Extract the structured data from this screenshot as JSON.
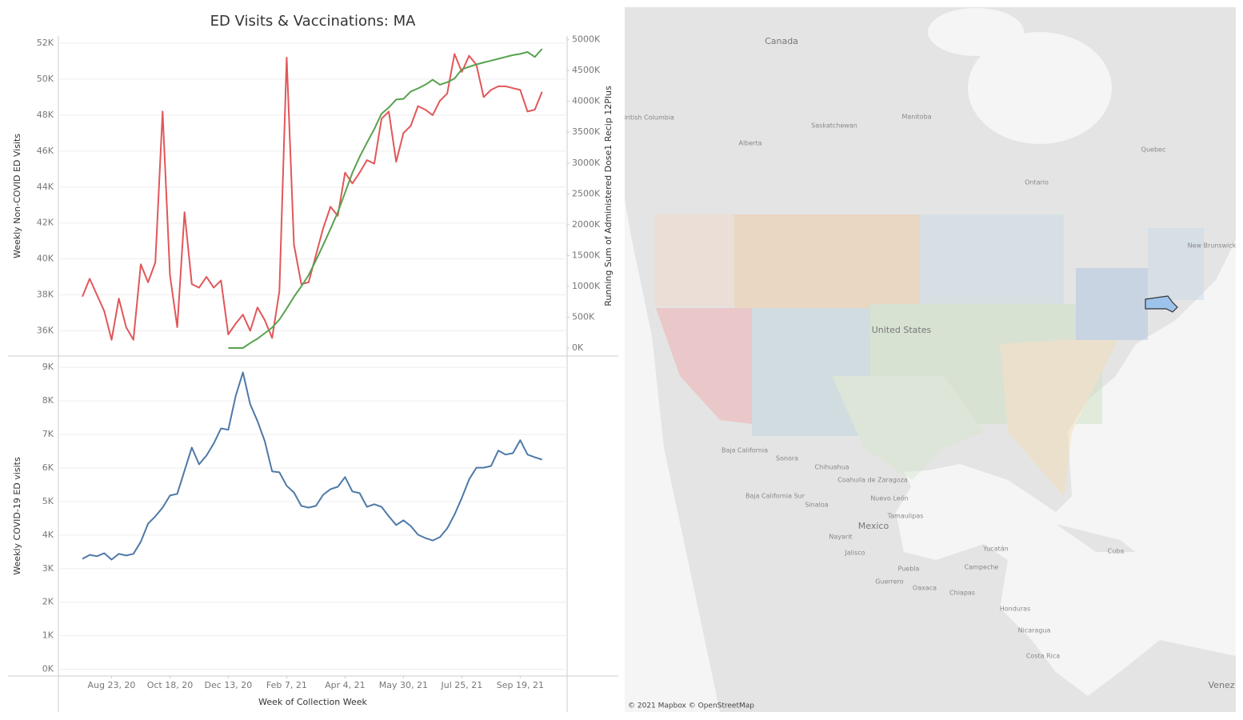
{
  "chart_data": [
    {
      "type": "line",
      "title": "ED Visits & Vaccinations: MA",
      "ylabel": "Weekly Non-COVID ED Visits",
      "y2label": "Running Sum of Administered Dose1 Recip 12Plus",
      "x": [
        "2020-07-26",
        "2020-08-02",
        "2020-08-09",
        "2020-08-16",
        "2020-08-23",
        "2020-08-30",
        "2020-09-06",
        "2020-09-13",
        "2020-09-20",
        "2020-09-27",
        "2020-10-04",
        "2020-10-11",
        "2020-10-18",
        "2020-10-25",
        "2020-11-01",
        "2020-11-08",
        "2020-11-15",
        "2020-11-22",
        "2020-11-29",
        "2020-12-06",
        "2020-12-13",
        "2020-12-20",
        "2020-12-27",
        "2021-01-03",
        "2021-01-10",
        "2021-01-17",
        "2021-01-24",
        "2021-01-31",
        "2021-02-07",
        "2021-02-14",
        "2021-02-21",
        "2021-02-28",
        "2021-03-07",
        "2021-03-14",
        "2021-03-21",
        "2021-03-28",
        "2021-04-04",
        "2021-04-11",
        "2021-04-18",
        "2021-04-25",
        "2021-05-02",
        "2021-05-09",
        "2021-05-16",
        "2021-05-23",
        "2021-05-30",
        "2021-06-06",
        "2021-06-13",
        "2021-06-20",
        "2021-06-27",
        "2021-07-04",
        "2021-07-11",
        "2021-07-18",
        "2021-07-25",
        "2021-08-01",
        "2021-08-08",
        "2021-08-15",
        "2021-08-22",
        "2021-08-29",
        "2021-09-05",
        "2021-09-12",
        "2021-09-19",
        "2021-09-26",
        "2021-10-03",
        "2021-10-10"
      ],
      "xlim": [
        "2020-07-03",
        "2021-11-03"
      ],
      "series": [
        {
          "color": "#e15759",
          "axis": "y",
          "values": [
            37900,
            38900,
            38000,
            37100,
            35500,
            37800,
            36200,
            35500,
            39700,
            38700,
            39800,
            48200,
            39100,
            36200,
            42600,
            38600,
            38400,
            39000,
            38400,
            38800,
            35800,
            36400,
            36900,
            36000,
            37300,
            36600,
            35600,
            38200,
            51200,
            40800,
            38600,
            38700,
            40200,
            41700,
            42900,
            42400,
            44800,
            44200,
            44800,
            45500,
            45300,
            47800,
            48200,
            45400,
            47000,
            47400,
            48500,
            48300,
            48000,
            48800,
            49200,
            51400,
            50400,
            51300,
            50800,
            49000,
            49400,
            49600,
            49600,
            49500,
            49400,
            48200,
            48300,
            49300
          ]
        },
        {
          "color": "#59a14f",
          "axis": "y2",
          "values": [
            null,
            null,
            null,
            null,
            null,
            null,
            null,
            null,
            null,
            null,
            null,
            null,
            null,
            null,
            null,
            null,
            null,
            null,
            null,
            null,
            0,
            0,
            0,
            80000,
            150000,
            240000,
            330000,
            460000,
            640000,
            830000,
            1000000,
            1180000,
            1420000,
            1670000,
            1930000,
            2200000,
            2520000,
            2840000,
            3100000,
            3330000,
            3550000,
            3800000,
            3900000,
            4030000,
            4040000,
            4160000,
            4210000,
            4270000,
            4350000,
            4270000,
            4310000,
            4370000,
            4520000,
            4560000,
            4600000,
            4630000,
            4660000,
            4690000,
            4720000,
            4750000,
            4770000,
            4800000,
            4720000,
            4850000
          ]
        }
      ],
      "ylim": [
        34600,
        52400
      ],
      "yticks": [
        {
          "value": 36000,
          "label": "36K"
        },
        {
          "value": 38000,
          "label": "38K"
        },
        {
          "value": 40000,
          "label": "40K"
        },
        {
          "value": 42000,
          "label": "42K"
        },
        {
          "value": 44000,
          "label": "44K"
        },
        {
          "value": 46000,
          "label": "46K"
        },
        {
          "value": 48000,
          "label": "48K"
        },
        {
          "value": 50000,
          "label": "50K"
        },
        {
          "value": 52000,
          "label": "52K"
        }
      ],
      "y2lim": [
        -130000,
        5060000
      ],
      "y2ticks": [
        {
          "value": 0,
          "label": "0K"
        },
        {
          "value": 500000,
          "label": "500K"
        },
        {
          "value": 1000000,
          "label": "1000K"
        },
        {
          "value": 1500000,
          "label": "1500K"
        },
        {
          "value": 2000000,
          "label": "2000K"
        },
        {
          "value": 2500000,
          "label": "2500K"
        },
        {
          "value": 3000000,
          "label": "3000K"
        },
        {
          "value": 3500000,
          "label": "3500K"
        },
        {
          "value": 4000000,
          "label": "4000K"
        },
        {
          "value": 4500000,
          "label": "4500K"
        },
        {
          "value": 5000000,
          "label": "5000K"
        }
      ],
      "grid": true
    },
    {
      "type": "line",
      "ylabel": "Weekly COVID-19 ED visits",
      "xlabel": "Week of Collection Week",
      "x": [
        "2020-07-26",
        "2020-08-02",
        "2020-08-09",
        "2020-08-16",
        "2020-08-23",
        "2020-08-30",
        "2020-09-06",
        "2020-09-13",
        "2020-09-20",
        "2020-09-27",
        "2020-10-04",
        "2020-10-11",
        "2020-10-18",
        "2020-10-25",
        "2020-11-01",
        "2020-11-08",
        "2020-11-15",
        "2020-11-22",
        "2020-11-29",
        "2020-12-06",
        "2020-12-13",
        "2020-12-20",
        "2020-12-27",
        "2021-01-03",
        "2021-01-10",
        "2021-01-17",
        "2021-01-24",
        "2021-01-31",
        "2021-02-07",
        "2021-02-14",
        "2021-02-21",
        "2021-02-28",
        "2021-03-07",
        "2021-03-14",
        "2021-03-21",
        "2021-03-28",
        "2021-04-04",
        "2021-04-11",
        "2021-04-18",
        "2021-04-25",
        "2021-05-02",
        "2021-05-09",
        "2021-05-16",
        "2021-05-23",
        "2021-05-30",
        "2021-06-06",
        "2021-06-13",
        "2021-06-20",
        "2021-06-27",
        "2021-07-04",
        "2021-07-11",
        "2021-07-18",
        "2021-07-25",
        "2021-08-01",
        "2021-08-08",
        "2021-08-15",
        "2021-08-22",
        "2021-08-29",
        "2021-09-05",
        "2021-09-12",
        "2021-09-19",
        "2021-09-26",
        "2021-10-03",
        "2021-10-10"
      ],
      "xlim": [
        "2020-07-03",
        "2021-11-03"
      ],
      "xticks": [
        {
          "value": "2020-08-23",
          "label": "Aug 23, 20"
        },
        {
          "value": "2020-10-18",
          "label": "Oct 18, 20"
        },
        {
          "value": "2020-12-13",
          "label": "Dec 13, 20"
        },
        {
          "value": "2021-02-07",
          "label": "Feb 7, 21"
        },
        {
          "value": "2021-04-04",
          "label": "Apr 4, 21"
        },
        {
          "value": "2021-05-30",
          "label": "May 30, 21"
        },
        {
          "value": "2021-07-25",
          "label": "Jul 25, 21"
        },
        {
          "value": "2021-09-19",
          "label": "Sep 19, 21"
        }
      ],
      "series": [
        {
          "color": "#4e79a7",
          "axis": "y",
          "values": [
            3290,
            3410,
            3370,
            3460,
            3270,
            3440,
            3390,
            3440,
            3800,
            4340,
            4560,
            4820,
            5180,
            5230,
            5920,
            6610,
            6110,
            6370,
            6730,
            7180,
            7140,
            8140,
            8850,
            7900,
            7400,
            6800,
            5900,
            5870,
            5470,
            5270,
            4870,
            4820,
            4870,
            5200,
            5370,
            5440,
            5730,
            5300,
            5250,
            4840,
            4920,
            4840,
            4560,
            4300,
            4440,
            4270,
            4010,
            3910,
            3840,
            3940,
            4200,
            4610,
            5110,
            5660,
            6010,
            6010,
            6060,
            6520,
            6400,
            6440,
            6830,
            6400,
            6320,
            6250
          ]
        }
      ],
      "ylim": [
        -200,
        9290
      ],
      "yticks": [
        {
          "value": 0,
          "label": "0K"
        },
        {
          "value": 1000,
          "label": "1K"
        },
        {
          "value": 2000,
          "label": "2K"
        },
        {
          "value": 3000,
          "label": "3K"
        },
        {
          "value": 4000,
          "label": "4K"
        },
        {
          "value": 5000,
          "label": "5K"
        },
        {
          "value": 6000,
          "label": "6K"
        },
        {
          "value": 7000,
          "label": "7K"
        },
        {
          "value": 8000,
          "label": "8K"
        },
        {
          "value": 9000,
          "label": "9K"
        }
      ],
      "grid": true
    }
  ],
  "map": {
    "labels": [
      "Canada",
      "British Columbia",
      "Alberta",
      "Saskatchewan",
      "Manitoba",
      "Ontario",
      "Quebec",
      "New Brunswick",
      "United States",
      "Baja California",
      "Sonora",
      "Chihuahua",
      "Coahuila de Zaragoza",
      "Baja California Sur",
      "Sinaloa",
      "Nuevo León",
      "Tamaulipas",
      "Mexico",
      "Nayarit",
      "Jalisco",
      "Yucatán",
      "Cuba",
      "Campeche",
      "Puebla",
      "Guerrero",
      "Oaxaca",
      "Chiapas",
      "Honduras",
      "Nicaragua",
      "Costa Rica",
      "Venez"
    ],
    "attribution": "© 2021 Mapbox © OpenStreetMap"
  }
}
